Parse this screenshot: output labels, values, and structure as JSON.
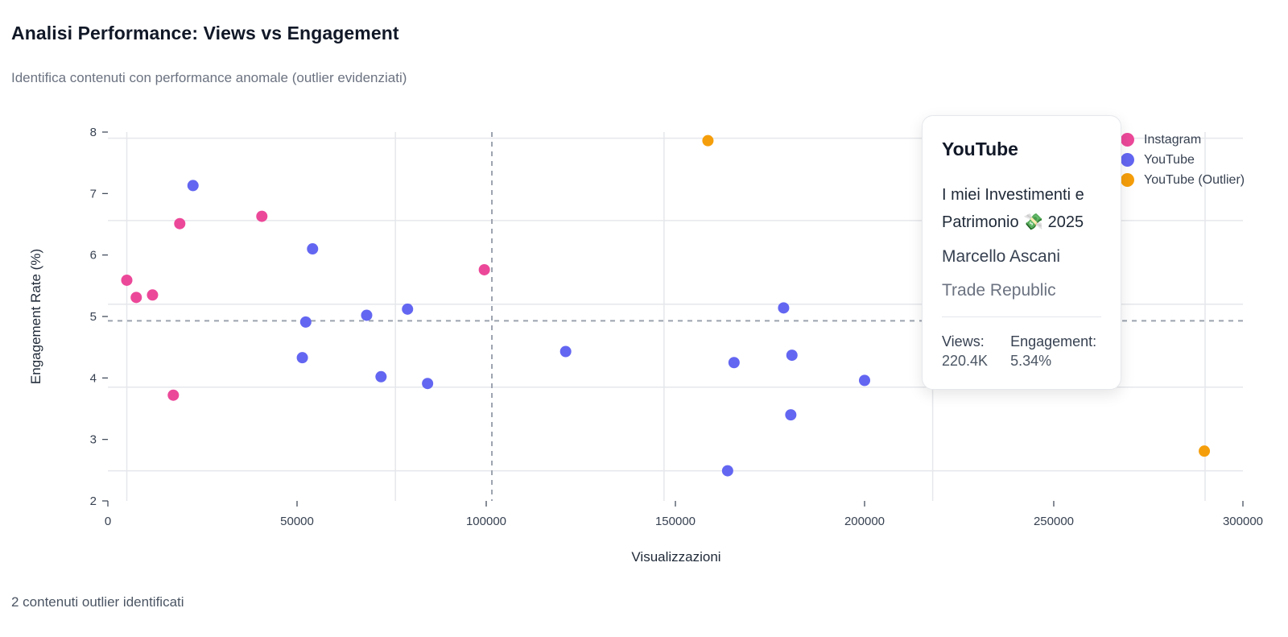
{
  "header": {
    "title": "Analisi Performance: Views vs Engagement",
    "subtitle": "Identifica contenuti con performance anomale (outlier evidenziati)"
  },
  "colors": {
    "instagram": "#ec4899",
    "youtube": "#6366f1",
    "outlier": "#f59e0b",
    "grid": "#e5e7eb",
    "reference_line": "#9ca3af"
  },
  "chart_data": {
    "type": "scatter",
    "xlabel": "Visualizzazioni",
    "ylabel": "Engagement Rate (%)",
    "xlim": [
      0,
      300000
    ],
    "ylim": [
      2,
      8
    ],
    "x_ticks": [
      0,
      50000,
      100000,
      150000,
      200000,
      250000,
      300000
    ],
    "y_ticks": [
      2,
      3,
      4,
      5,
      6,
      7,
      8
    ],
    "grid": true,
    "legend_position": "top-right",
    "reference_lines": {
      "x": 101500,
      "y": 4.93
    },
    "series": [
      {
        "name": "Instagram",
        "color": "#ec4899",
        "points": [
          {
            "x": 5000,
            "y": 5.59
          },
          {
            "x": 7500,
            "y": 5.31
          },
          {
            "x": 11800,
            "y": 5.35
          },
          {
            "x": 17300,
            "y": 3.72
          },
          {
            "x": 19000,
            "y": 6.51
          },
          {
            "x": 40700,
            "y": 6.63
          },
          {
            "x": 99500,
            "y": 5.76
          }
        ]
      },
      {
        "name": "YouTube",
        "color": "#6366f1",
        "points": [
          {
            "x": 22500,
            "y": 7.13
          },
          {
            "x": 51400,
            "y": 4.33
          },
          {
            "x": 52300,
            "y": 4.91
          },
          {
            "x": 54100,
            "y": 6.1
          },
          {
            "x": 68400,
            "y": 5.02
          },
          {
            "x": 72200,
            "y": 4.02
          },
          {
            "x": 79200,
            "y": 5.12
          },
          {
            "x": 84500,
            "y": 3.91
          },
          {
            "x": 121000,
            "y": 4.43
          },
          {
            "x": 163800,
            "y": 2.49
          },
          {
            "x": 165500,
            "y": 4.25
          },
          {
            "x": 178600,
            "y": 5.14
          },
          {
            "x": 180500,
            "y": 3.4
          },
          {
            "x": 180800,
            "y": 4.37
          },
          {
            "x": 200000,
            "y": 3.96
          },
          {
            "x": 220400,
            "y": 5.34
          }
        ]
      },
      {
        "name": "YouTube (Outlier)",
        "color": "#f59e0b",
        "points": [
          {
            "x": 158600,
            "y": 7.86
          },
          {
            "x": 289800,
            "y": 2.81
          }
        ]
      }
    ]
  },
  "legend": [
    {
      "label": "Instagram",
      "color": "#ec4899"
    },
    {
      "label": "YouTube",
      "color": "#6366f1"
    },
    {
      "label": "YouTube (Outlier)",
      "color": "#f59e0b"
    }
  ],
  "tooltip": {
    "platform": "YouTube",
    "video": "I miei Investimenti e Patrimonio 💸 2025",
    "creator": "Marcello Ascani",
    "brand": "Trade Republic",
    "views_label": "Views:",
    "views_value": "220.4K",
    "engagement_label": "Engagement:",
    "engagement_value": "5.34%"
  },
  "footer": {
    "outlier_note": "2 contenuti outlier identificati"
  }
}
